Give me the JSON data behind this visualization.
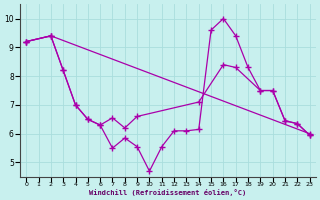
{
  "xlabel": "Windchill (Refroidissement éolien,°C)",
  "bg_color": "#c8f0ee",
  "line_color": "#aa00aa",
  "grid_color": "#aadddd",
  "xlim": [
    -0.5,
    23.5
  ],
  "ylim": [
    4.5,
    10.5
  ],
  "xticks": [
    0,
    1,
    2,
    3,
    4,
    5,
    6,
    7,
    8,
    9,
    10,
    11,
    12,
    13,
    14,
    15,
    16,
    17,
    18,
    19,
    20,
    21,
    22,
    23
  ],
  "yticks": [
    5,
    6,
    7,
    8,
    9,
    10
  ],
  "line1_x": [
    0,
    2,
    23
  ],
  "line1_y": [
    9.2,
    9.4,
    6.0
  ],
  "line2_x": [
    0,
    2,
    3,
    4,
    5,
    6,
    7,
    8,
    9,
    14,
    16,
    17,
    19,
    20,
    21,
    22,
    23
  ],
  "line2_y": [
    9.2,
    9.4,
    8.2,
    7.0,
    6.5,
    6.3,
    6.55,
    6.2,
    6.6,
    7.1,
    8.4,
    8.3,
    7.5,
    7.5,
    6.45,
    6.35,
    5.95
  ],
  "line3_x": [
    0,
    2,
    3,
    4,
    5,
    6,
    7,
    8,
    9,
    10,
    11,
    12,
    13,
    14,
    15,
    16,
    17,
    18,
    19,
    20,
    21,
    22,
    23
  ],
  "line3_y": [
    9.2,
    9.4,
    8.2,
    7.0,
    6.5,
    6.3,
    5.5,
    5.85,
    5.55,
    4.7,
    5.55,
    6.1,
    6.1,
    6.15,
    9.6,
    10.0,
    9.4,
    8.3,
    7.5,
    7.5,
    6.45,
    6.35,
    5.95
  ],
  "marker": "+",
  "markersize": 4,
  "linewidth": 0.9
}
